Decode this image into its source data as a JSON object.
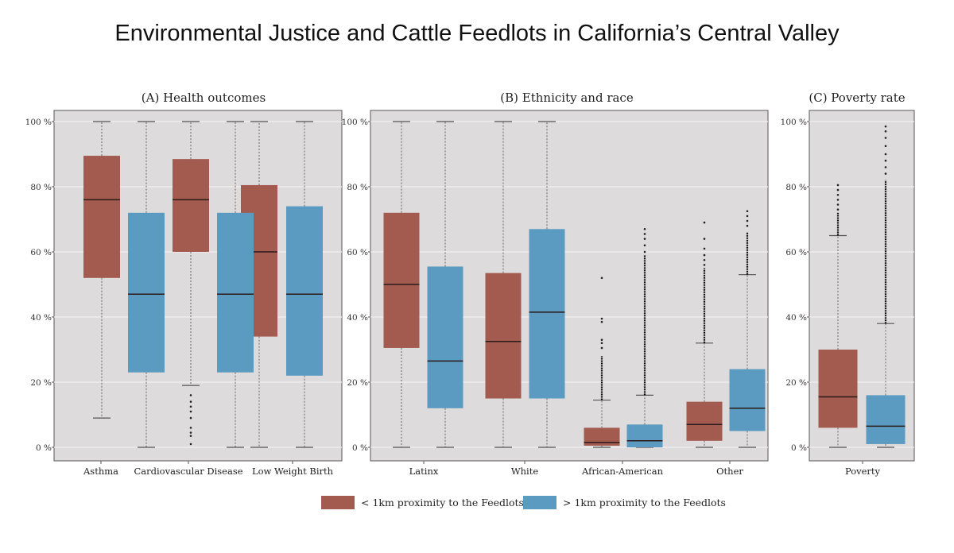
{
  "title": "Environmental Justice and Cattle Feedlots in California’s Central Valley",
  "colors": {
    "near": "#a35b4f",
    "far": "#5b9bc2",
    "panel_bg": "#dedbdc",
    "grid": "#f2f0f1"
  },
  "legend": [
    {
      "name": "near",
      "label": "< 1km proximity to the Feedlots"
    },
    {
      "name": "far",
      "label": "> 1km proximity to the Feedlots"
    }
  ],
  "chart_data": [
    {
      "type": "boxplot",
      "title": "(A) Health outcomes",
      "ylim": [
        0,
        100
      ],
      "yticks": [
        "0 %",
        "20 %",
        "40 %",
        "60 %",
        "80 %",
        "100 %"
      ],
      "categories": [
        "Asthma",
        "Cardiovascular Disease",
        "Low Weight Birth"
      ],
      "series": [
        {
          "name": "< 1km proximity to the Feedlots",
          "boxes": [
            {
              "whisker_low": 9,
              "q1": 52,
              "median": 76,
              "q3": 89.5,
              "whisker_high": 100,
              "outliers": []
            },
            {
              "whisker_low": 19,
              "q1": 60,
              "median": 76,
              "q3": 88.5,
              "whisker_high": 100,
              "outliers": [
                16,
                14,
                12.5,
                11,
                9,
                6,
                4.5,
                3.5,
                1
              ]
            },
            {
              "whisker_low": 0,
              "q1": 34,
              "median": 60,
              "q3": 80.5,
              "whisker_high": 100,
              "outliers": []
            }
          ]
        },
        {
          "name": "> 1km proximity to the Feedlots",
          "boxes": [
            {
              "whisker_low": 0,
              "q1": 23,
              "median": 47,
              "q3": 72,
              "whisker_high": 100,
              "outliers": []
            },
            {
              "whisker_low": 0,
              "q1": 23,
              "median": 47,
              "q3": 72,
              "whisker_high": 100,
              "outliers": []
            },
            {
              "whisker_low": 0,
              "q1": 22,
              "median": 47,
              "q3": 74,
              "whisker_high": 100,
              "outliers": []
            }
          ]
        }
      ]
    },
    {
      "type": "boxplot",
      "title": "(B) Ethnicity and race",
      "ylim": [
        0,
        100
      ],
      "yticks": [
        "0 %",
        "20 %",
        "40 %",
        "60 %",
        "80 %",
        "100 %"
      ],
      "categories": [
        "Latinx",
        "White",
        "African-American",
        "Other"
      ],
      "series": [
        {
          "name": "< 1km proximity to the Feedlots",
          "boxes": [
            {
              "whisker_low": 0,
              "q1": 30.5,
              "median": 50,
              "q3": 72,
              "whisker_high": 100,
              "outliers": []
            },
            {
              "whisker_low": 0,
              "q1": 15,
              "median": 32.5,
              "q3": 53.5,
              "whisker_high": 100,
              "outliers": []
            },
            {
              "whisker_low": 0,
              "q1": 0.5,
              "median": 1.5,
              "q3": 6,
              "whisker_high": 14.5,
              "outliers_range": [
                14.5,
                28
              ],
              "outliers": [
                30.5,
                32,
                33,
                38.5,
                39.5,
                52
              ]
            },
            {
              "whisker_low": 0,
              "q1": 2,
              "median": 7,
              "q3": 14,
              "whisker_high": 32,
              "outliers_range": [
                32,
                55
              ],
              "outliers": [
                56,
                57.5,
                59,
                61,
                64,
                69
              ]
            }
          ]
        },
        {
          "name": "> 1km proximity to the Feedlots",
          "boxes": [
            {
              "whisker_low": 0,
              "q1": 12,
              "median": 26.5,
              "q3": 55.5,
              "whisker_high": 100,
              "outliers": []
            },
            {
              "whisker_low": 0,
              "q1": 15,
              "median": 41.5,
              "q3": 67,
              "whisker_high": 100,
              "outliers": []
            },
            {
              "whisker_low": 0,
              "q1": 0,
              "median": 2,
              "q3": 7,
              "whisker_high": 16,
              "outliers_range": [
                16,
                59
              ],
              "outliers": [
                60,
                62,
                64,
                65.5,
                67
              ]
            },
            {
              "whisker_low": 0,
              "q1": 5,
              "median": 12,
              "q3": 24,
              "whisker_high": 53,
              "outliers_range": [
                53,
                66
              ],
              "outliers": [
                68,
                69.5,
                71,
                72.5
              ]
            }
          ]
        }
      ]
    },
    {
      "type": "boxplot",
      "title": "(C) Poverty rate",
      "ylim": [
        0,
        100
      ],
      "yticks": [
        "0 %",
        "20 %",
        "40 %",
        "60 %",
        "80 %",
        "100 %"
      ],
      "categories": [
        "Poverty"
      ],
      "series": [
        {
          "name": "< 1km proximity to the Feedlots",
          "boxes": [
            {
              "whisker_low": 0,
              "q1": 6,
              "median": 15.5,
              "q3": 30,
              "whisker_high": 65,
              "outliers_range": [
                65,
                72
              ],
              "outliers": [
                73,
                74.5,
                76,
                77.5,
                79,
                80.5
              ]
            }
          ]
        },
        {
          "name": "> 1km proximity to the Feedlots",
          "boxes": [
            {
              "whisker_low": 0,
              "q1": 1,
              "median": 6.5,
              "q3": 16,
              "whisker_high": 38,
              "outliers_range": [
                38,
                82
              ],
              "outliers": [
                84,
                86,
                88,
                90,
                92.5,
                95,
                97,
                98.5
              ]
            }
          ]
        }
      ]
    }
  ]
}
